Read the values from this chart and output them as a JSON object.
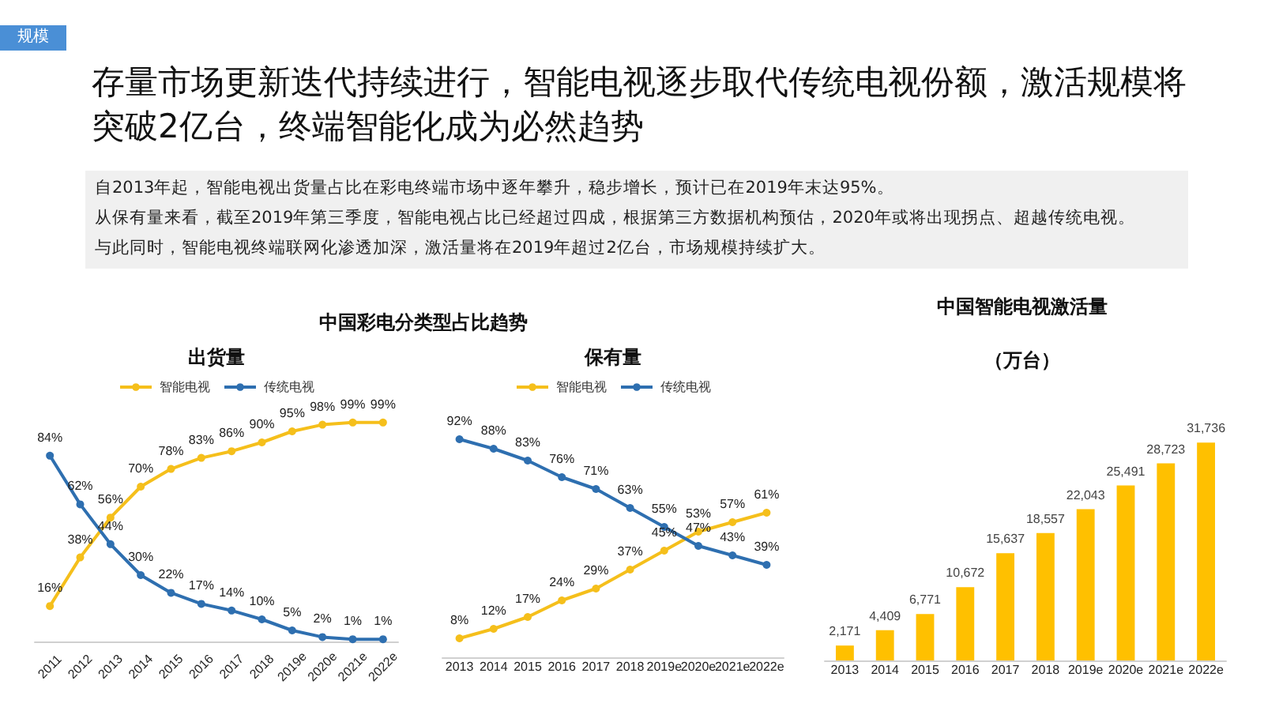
{
  "chart_data": [
    {
      "type": "other",
      "title": "存量市场更新迭代持续进行，智能电视逐步取代传统电视份额，激活规模将突破2亿台，终端智能化成为必然趋势",
      "annotations": [
        "规模",
        "自2013年起，智能电视出货量占比在彩电终端市场中逐年攀升，稳步增长，预计已在2019年末达95%。",
        "从保有量来看，截至2019年第三季度，智能电视占比已经超过四成，根据第三方数据机构预估，2020年或将出现拐点、超越传统电视。",
        "与此同时，智能电视终端联网化渗透加深，激活量将在2019年超过2亿台，市场规模持续扩大。"
      ]
    },
    {
      "type": "line",
      "title": "中国彩电分类型占比趋势",
      "subtitle": "出货量",
      "categories": [
        "2011",
        "2012",
        "2013",
        "2014",
        "2015",
        "2016",
        "2017",
        "2018",
        "2019e",
        "2020e",
        "2021e",
        "2022e"
      ],
      "series": [
        {
          "name": "智能电视",
          "color": "#f5bf1b",
          "values": [
            16,
            38,
            56,
            70,
            78,
            83,
            86,
            90,
            95,
            98,
            99,
            99
          ],
          "value_labels": [
            "16%",
            "38%",
            "56%",
            "70%",
            "78%",
            "83%",
            "86%",
            "90%",
            "95%",
            "98%",
            "99%",
            "99%"
          ]
        },
        {
          "name": "传统电视",
          "color": "#2e6fb0",
          "values": [
            84,
            62,
            44,
            30,
            22,
            17,
            14,
            10,
            5,
            2,
            1,
            1
          ],
          "value_labels": [
            "84%",
            "62%",
            "44%",
            "30%",
            "22%",
            "17%",
            "14%",
            "10%",
            "5%",
            "2%",
            "1%",
            "1%"
          ]
        }
      ],
      "legend": "top",
      "grid": false,
      "marker": "circle",
      "line_style": "solid",
      "tick_labels": "x"
    },
    {
      "type": "line",
      "subtitle": "保有量",
      "categories": [
        "2013",
        "2014",
        "2015",
        "2016",
        "2017",
        "2018",
        "2019e",
        "2020e",
        "2021e",
        "2022e"
      ],
      "series": [
        {
          "name": "智能电视",
          "color": "#f5bf1b",
          "values": [
            8,
            12,
            17,
            24,
            29,
            37,
            45,
            53,
            57,
            61
          ],
          "value_labels": [
            "8%",
            "12%",
            "17%",
            "24%",
            "29%",
            "37%",
            "45%",
            "53%",
            "57%",
            "61%"
          ]
        },
        {
          "name": "传统电视",
          "color": "#2e6fb0",
          "values": [
            92,
            88,
            83,
            76,
            71,
            63,
            55,
            47,
            43,
            39
          ],
          "value_labels": [
            "92%",
            "88%",
            "83%",
            "76%",
            "71%",
            "63%",
            "55%",
            "47%",
            "43%",
            "39%"
          ]
        }
      ],
      "legend": "top",
      "grid": false,
      "marker": "circle",
      "line_style": "solid",
      "tick_labels": "x"
    },
    {
      "type": "bar",
      "title": "中国智能电视激活量",
      "subtitle": "（万台）",
      "categories": [
        "2013",
        "2014",
        "2015",
        "2016",
        "2017",
        "2018",
        "2019e",
        "2020e",
        "2021e",
        "2022e"
      ],
      "values": [
        2171,
        4409,
        6771,
        10672,
        15637,
        18557,
        22043,
        25491,
        28723,
        31736
      ],
      "color": "#ffc000",
      "value_labels": [
        "2,171",
        "4,409",
        "6,771",
        "10,672",
        "15,637",
        "18,557",
        "22,043",
        "25,491",
        "28,723",
        "31,736"
      ],
      "grid": false,
      "tick_labels": "x"
    }
  ]
}
